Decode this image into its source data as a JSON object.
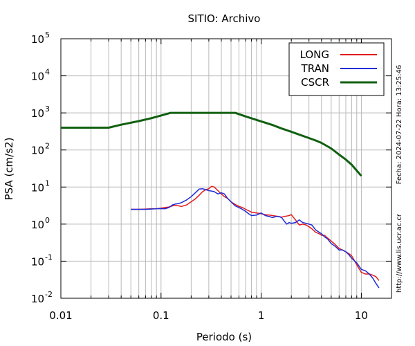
{
  "chart_data": {
    "type": "line",
    "title": "SITIO: Archivo",
    "xlabel": "Periodo (s)",
    "ylabel": "PSA (cm/s2)",
    "xscale": "log",
    "yscale": "log",
    "xlim": [
      0.01,
      20
    ],
    "ylim": [
      0.01,
      100000
    ],
    "grid": true,
    "legend_position": "top-right",
    "x_tick_labels": [
      {
        "value": 0.01,
        "label": "0.01"
      },
      {
        "value": 0.1,
        "label": "0.1"
      },
      {
        "value": 1,
        "label": "1"
      },
      {
        "value": 10,
        "label": "10"
      }
    ],
    "y_tick_labels": [
      {
        "value": 100000,
        "base": "10",
        "exp": "5"
      },
      {
        "value": 10000,
        "base": "10",
        "exp": "4"
      },
      {
        "value": 1000,
        "base": "10",
        "exp": "3"
      },
      {
        "value": 100,
        "base": "10",
        "exp": "2"
      },
      {
        "value": 10,
        "base": "10",
        "exp": "1"
      },
      {
        "value": 1,
        "base": "10",
        "exp": "0"
      },
      {
        "value": 0.1,
        "base": "10",
        "exp": "-1"
      },
      {
        "value": 0.01,
        "base": "10",
        "exp": "-2"
      }
    ],
    "series": [
      {
        "name": "LONG",
        "color": "#e31a1c",
        "width": 1.5,
        "x": [
          0.05,
          0.06,
          0.07,
          0.08,
          0.09,
          0.1,
          0.11,
          0.12,
          0.13,
          0.14,
          0.15,
          0.16,
          0.18,
          0.2,
          0.22,
          0.24,
          0.26,
          0.28,
          0.3,
          0.32,
          0.34,
          0.37,
          0.4,
          0.43,
          0.46,
          0.5,
          0.55,
          0.6,
          0.65,
          0.7,
          0.75,
          0.8,
          0.9,
          1.0,
          1.1,
          1.2,
          1.3,
          1.4,
          1.5,
          1.6,
          1.7,
          1.8,
          1.9,
          2.0,
          2.2,
          2.4,
          2.6,
          2.8,
          3.0,
          3.2,
          3.5,
          3.8,
          4.0,
          4.3,
          4.6,
          5.0,
          5.5,
          6.0,
          6.5,
          7.0,
          7.5,
          8.0,
          9.0,
          10.0,
          11.0,
          12.0,
          13.0,
          14.0,
          15.0
        ],
        "values": [
          2.5,
          2.5,
          2.55,
          2.6,
          2.6,
          2.7,
          2.8,
          2.9,
          3.1,
          3.2,
          3.1,
          3.0,
          3.3,
          4.0,
          4.8,
          6.0,
          7.5,
          8.5,
          9.0,
          10.5,
          10.0,
          8.0,
          6.5,
          5.5,
          5.0,
          4.0,
          3.4,
          3.0,
          2.8,
          2.5,
          2.3,
          2.1,
          2.0,
          1.9,
          1.8,
          1.75,
          1.7,
          1.65,
          1.6,
          1.55,
          1.6,
          1.65,
          1.7,
          1.8,
          1.3,
          0.95,
          1.0,
          0.95,
          0.85,
          0.75,
          0.6,
          0.55,
          0.5,
          0.5,
          0.42,
          0.35,
          0.28,
          0.22,
          0.2,
          0.18,
          0.16,
          0.14,
          0.08,
          0.05,
          0.045,
          0.045,
          0.042,
          0.038,
          0.03
        ]
      },
      {
        "name": "TRAN",
        "color": "#1f2bd6",
        "width": 1.5,
        "x": [
          0.05,
          0.06,
          0.07,
          0.08,
          0.09,
          0.1,
          0.11,
          0.12,
          0.13,
          0.14,
          0.15,
          0.16,
          0.18,
          0.2,
          0.22,
          0.24,
          0.26,
          0.28,
          0.3,
          0.32,
          0.34,
          0.37,
          0.4,
          0.43,
          0.46,
          0.5,
          0.55,
          0.6,
          0.65,
          0.7,
          0.75,
          0.8,
          0.9,
          1.0,
          1.1,
          1.2,
          1.3,
          1.4,
          1.5,
          1.6,
          1.7,
          1.8,
          1.9,
          2.0,
          2.2,
          2.4,
          2.6,
          2.8,
          3.0,
          3.2,
          3.5,
          3.8,
          4.0,
          4.3,
          4.6,
          5.0,
          5.5,
          6.0,
          6.5,
          7.0,
          7.5,
          8.0,
          9.0,
          10.0,
          11.0,
          12.0,
          13.0,
          14.0,
          15.0
        ],
        "values": [
          2.5,
          2.5,
          2.5,
          2.55,
          2.6,
          2.6,
          2.6,
          2.8,
          3.3,
          3.5,
          3.6,
          3.8,
          4.5,
          5.5,
          7.0,
          8.8,
          9.0,
          8.5,
          8.0,
          7.8,
          7.5,
          6.5,
          7.0,
          6.5,
          5.0,
          4.0,
          3.1,
          2.8,
          2.5,
          2.2,
          1.9,
          1.7,
          1.75,
          2.0,
          1.7,
          1.6,
          1.5,
          1.6,
          1.6,
          1.5,
          1.2,
          1.0,
          1.1,
          1.05,
          1.1,
          1.3,
          1.1,
          1.05,
          1.0,
          0.95,
          0.7,
          0.6,
          0.55,
          0.45,
          0.4,
          0.3,
          0.25,
          0.2,
          0.2,
          0.18,
          0.15,
          0.12,
          0.09,
          0.06,
          0.055,
          0.045,
          0.035,
          0.025,
          0.019
        ]
      },
      {
        "name": "CSCR",
        "color": "#106010",
        "width": 3,
        "x": [
          0.01,
          0.03,
          0.04,
          0.06,
          0.08,
          0.1,
          0.125,
          0.2,
          0.3,
          0.4,
          0.55,
          0.7,
          1.0,
          1.3,
          1.6,
          2.0,
          2.5,
          3.0,
          3.5,
          4.0,
          5.0,
          6.0,
          7.0,
          8.0,
          10.0
        ],
        "values": [
          400,
          400,
          480,
          600,
          720,
          850,
          1000,
          1000,
          1000,
          1000,
          1000,
          800,
          590,
          470,
          380,
          310,
          250,
          210,
          180,
          155,
          110,
          75,
          55,
          40,
          20
        ]
      }
    ]
  },
  "side_text": {
    "timestamp": "Fecha: 2024-07-22  Hora: 13:25:46",
    "url": "http://www.lis.ucr.ac.cr"
  }
}
